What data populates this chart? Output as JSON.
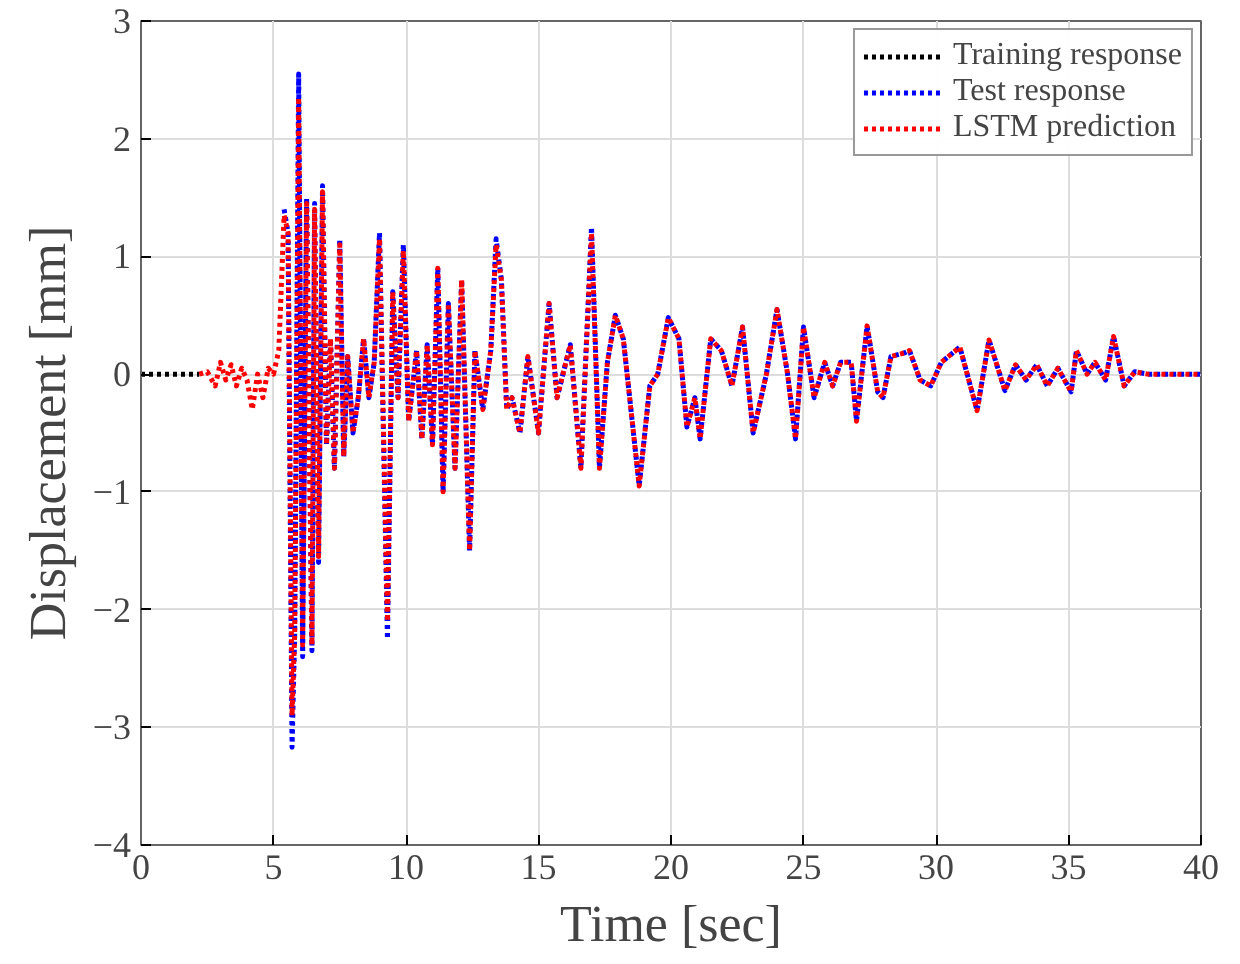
{
  "chart_data": {
    "type": "line",
    "xlabel": "Time [sec]",
    "ylabel": "Displacement [mm]",
    "xlim": [
      0,
      40
    ],
    "ylim": [
      -4,
      3
    ],
    "xticks": [
      0,
      5,
      10,
      15,
      20,
      25,
      30,
      35,
      40
    ],
    "yticks": [
      -4,
      -3,
      -2,
      -1,
      0,
      1,
      2,
      3
    ],
    "grid": true,
    "legend": "top right",
    "line_style": "dotted",
    "marker": "none",
    "series": [
      {
        "name": "Training response",
        "color": "#000000",
        "x": [
          0,
          0.5,
          1,
          1.5,
          2,
          2.2
        ],
        "values": [
          0,
          0,
          0,
          0,
          0,
          0
        ]
      },
      {
        "name": "Test response",
        "color": "#0000ff",
        "x": [
          5.4,
          5.55,
          5.7,
          5.8,
          5.95,
          6.1,
          6.25,
          6.45,
          6.55,
          6.7,
          6.85,
          7.0,
          7.15,
          7.3,
          7.5,
          7.65,
          7.8,
          8.0,
          8.2,
          8.4,
          8.6,
          8.8,
          9.0,
          9.3,
          9.5,
          9.7,
          9.9,
          10.1,
          10.4,
          10.6,
          10.8,
          11.0,
          11.2,
          11.4,
          11.6,
          11.85,
          12.1,
          12.4,
          12.6,
          12.9,
          13.2,
          13.4,
          13.6,
          13.8,
          14.0,
          14.3,
          14.6,
          15.0,
          15.4,
          15.7,
          16.2,
          16.6,
          17.0,
          17.3,
          17.6,
          17.9,
          18.2,
          18.8,
          19.2,
          19.5,
          19.9,
          20.3,
          20.6,
          20.9,
          21.1,
          21.5,
          21.9,
          22.3,
          22.7,
          23.1,
          23.6,
          24.0,
          24.4,
          24.7,
          25.0,
          25.4,
          25.8,
          26.1,
          26.4,
          26.8,
          27.0,
          27.4,
          27.8,
          28.0,
          28.3,
          28.8,
          29.0,
          29.4,
          29.8,
          30.2,
          30.9,
          31.55,
          32.0,
          32.6,
          33.0,
          33.4,
          33.8,
          34.2,
          34.6,
          35.1,
          35.3,
          35.7,
          36.0,
          36.4,
          36.7,
          37.1,
          37.5,
          38,
          39,
          40
        ],
        "values": [
          1.4,
          1.2,
          -3.17,
          -2.2,
          2.55,
          -2.4,
          1.5,
          -2.35,
          1.45,
          -1.6,
          1.6,
          -0.6,
          0.3,
          -0.8,
          1.15,
          -0.7,
          0.15,
          -0.5,
          -0.2,
          0.3,
          -0.2,
          0.1,
          1.2,
          -2.25,
          0.7,
          -0.2,
          1.1,
          -0.4,
          0.2,
          -0.55,
          0.25,
          -0.6,
          0.9,
          -1.0,
          0.6,
          -0.8,
          0.8,
          -1.5,
          0.2,
          -0.3,
          0.2,
          1.15,
          0.8,
          -0.3,
          -0.2,
          -0.5,
          0.15,
          -0.5,
          0.6,
          -0.2,
          0.25,
          -0.8,
          1.25,
          -0.8,
          0.1,
          0.5,
          0.3,
          -0.95,
          -0.1,
          0.0,
          0.48,
          0.3,
          -0.45,
          -0.2,
          -0.55,
          0.3,
          0.2,
          -0.1,
          0.4,
          -0.5,
          0.0,
          0.55,
          0.0,
          -0.55,
          0.4,
          -0.2,
          0.1,
          -0.1,
          0.1,
          0.1,
          -0.4,
          0.41,
          -0.15,
          -0.2,
          0.15,
          0.18,
          0.2,
          -0.05,
          -0.1,
          0.1,
          0.23,
          -0.31,
          0.29,
          -0.14,
          0.08,
          -0.05,
          0.08,
          -0.1,
          0.05,
          -0.15,
          0.2,
          0.0,
          0.1,
          -0.05,
          0.32,
          -0.1,
          0.02,
          0,
          0,
          0
        ]
      },
      {
        "name": "LSTM prediction",
        "color": "#ff0000",
        "x": [
          2.2,
          2.5,
          2.8,
          3.0,
          3.2,
          3.4,
          3.6,
          3.8,
          4.0,
          4.2,
          4.4,
          4.6,
          4.8,
          5.0,
          5.2,
          5.4,
          5.55,
          5.7,
          5.8,
          5.95,
          6.1,
          6.25,
          6.45,
          6.55,
          6.7,
          6.85,
          7.0,
          7.15,
          7.3,
          7.5,
          7.65,
          7.8,
          8.0,
          8.2,
          8.4,
          8.6,
          8.8,
          9.0,
          9.3,
          9.5,
          9.7,
          9.9,
          10.1,
          10.4,
          10.6,
          10.8,
          11.0,
          11.2,
          11.4,
          11.6,
          11.85,
          12.1,
          12.4,
          12.6,
          12.9,
          13.2,
          13.4,
          13.6,
          13.8,
          14.0,
          14.3,
          14.6,
          15.0,
          15.4,
          15.7,
          16.2,
          16.6,
          17.0,
          17.3,
          17.6,
          17.9,
          18.2,
          18.8,
          19.2,
          19.5,
          19.9,
          20.3,
          20.6,
          20.9,
          21.1,
          21.5,
          21.9,
          22.3,
          22.7,
          23.1,
          23.6,
          24.0,
          24.4,
          24.7,
          25.0,
          25.4,
          25.8,
          26.1,
          26.4,
          26.8,
          27.0,
          27.4,
          27.8,
          28.0,
          28.3,
          28.8,
          29.0,
          29.4,
          29.8,
          30.2,
          30.9,
          31.55,
          32.0,
          32.6,
          33.0,
          33.4,
          33.8,
          34.2,
          34.6,
          35.1,
          35.3,
          35.7,
          36.0,
          36.4,
          36.7,
          37.1,
          37.5,
          38,
          39,
          40
        ],
        "values": [
          0,
          0.02,
          -0.1,
          0.1,
          -0.05,
          0.08,
          -0.1,
          0.05,
          -0.05,
          -0.3,
          0.0,
          -0.2,
          0.05,
          0.0,
          0.2,
          1.35,
          1.2,
          -2.9,
          -2.2,
          2.35,
          -2.3,
          1.45,
          -2.3,
          1.4,
          -1.55,
          1.55,
          -0.6,
          0.3,
          -0.8,
          1.1,
          -0.7,
          0.15,
          -0.5,
          -0.2,
          0.3,
          -0.2,
          0.1,
          1.15,
          -2.1,
          0.7,
          -0.2,
          1.05,
          -0.4,
          0.2,
          -0.55,
          0.25,
          -0.6,
          0.9,
          -1.0,
          0.6,
          -0.8,
          0.8,
          -1.5,
          0.2,
          -0.3,
          0.2,
          1.1,
          0.8,
          -0.3,
          -0.2,
          -0.5,
          0.15,
          -0.5,
          0.6,
          -0.2,
          0.25,
          -0.8,
          1.2,
          -0.8,
          0.1,
          0.5,
          0.3,
          -0.95,
          -0.1,
          0.0,
          0.48,
          0.3,
          -0.45,
          -0.2,
          -0.55,
          0.3,
          0.2,
          -0.1,
          0.4,
          -0.5,
          0.0,
          0.55,
          0.0,
          -0.55,
          0.4,
          -0.2,
          0.1,
          -0.1,
          0.1,
          0.1,
          -0.4,
          0.41,
          -0.15,
          -0.2,
          0.15,
          0.18,
          0.2,
          -0.05,
          -0.1,
          0.1,
          0.23,
          -0.31,
          0.29,
          -0.14,
          0.08,
          -0.05,
          0.08,
          -0.1,
          0.05,
          -0.15,
          0.2,
          0.0,
          0.1,
          -0.05,
          0.32,
          -0.1,
          0.02,
          0,
          0,
          0
        ]
      }
    ]
  }
}
